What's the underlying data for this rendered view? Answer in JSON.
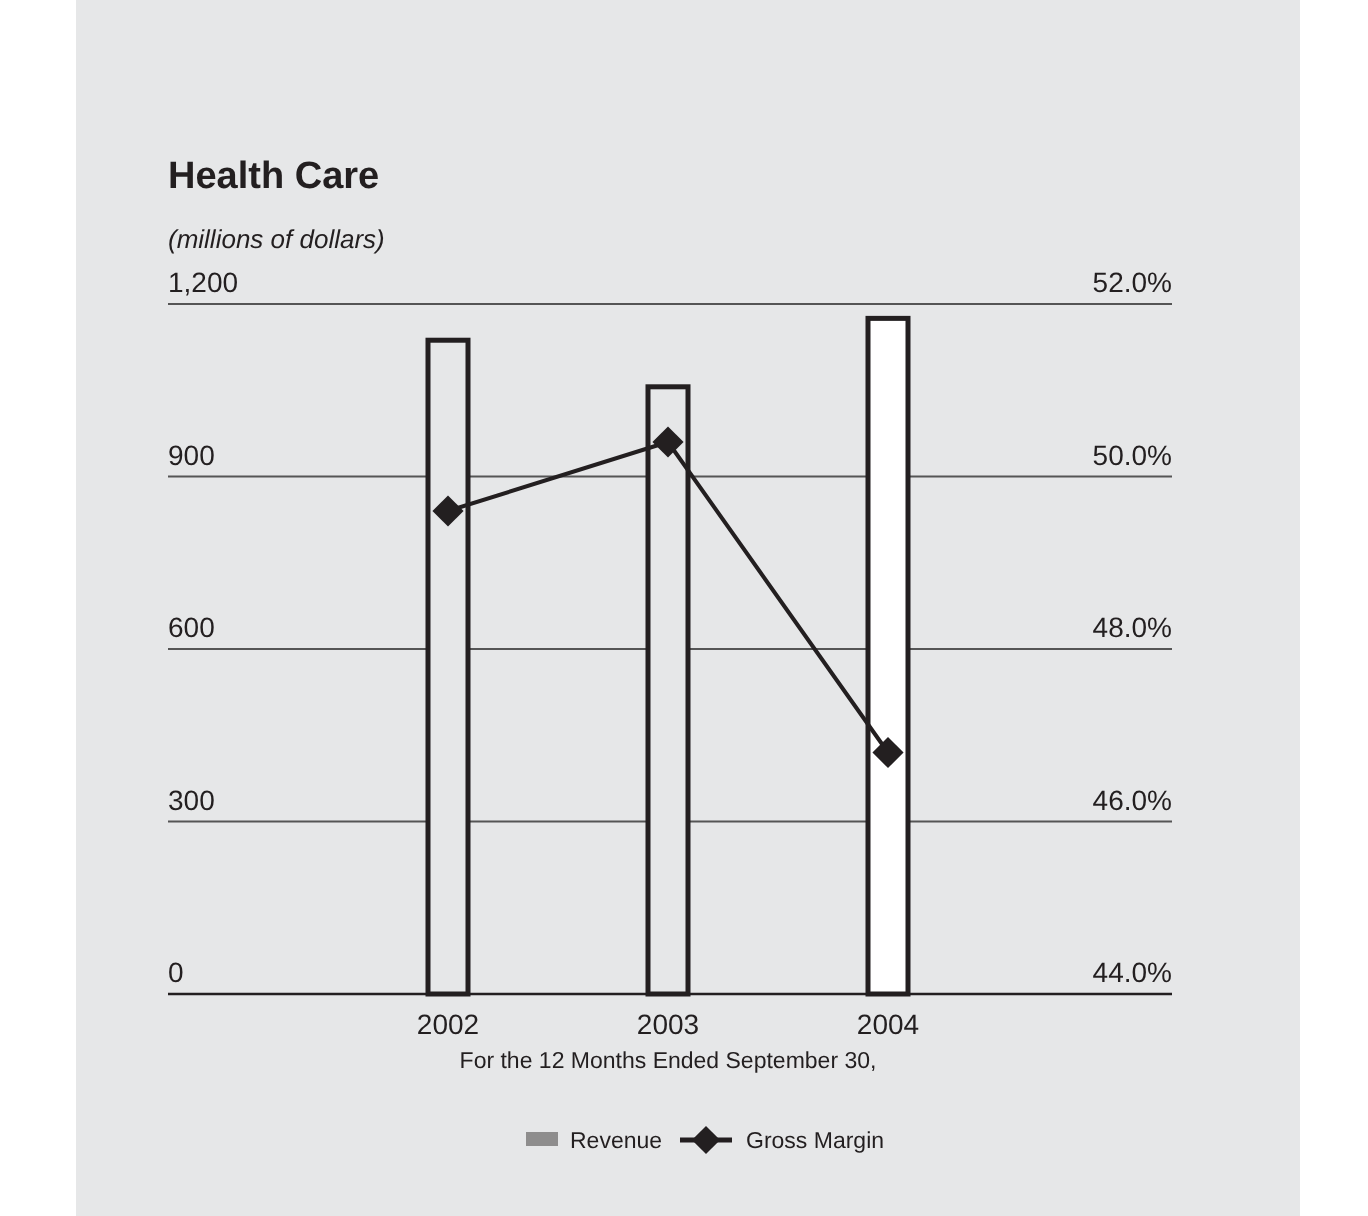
{
  "chart_data": {
    "type": "bar",
    "title": "Health Care",
    "subtitle": "(millions of dollars)",
    "xlabel": "For the 12 Months Ended September 30,",
    "categories": [
      "2002",
      "2003",
      "2004"
    ],
    "series": [
      {
        "name": "Revenue",
        "color": "#231f20",
        "colors": [
          "#e6e7e8",
          "#e6e7e8",
          "#ffffff"
        ],
        "values": [
          1137,
          1056,
          1175
        ]
      },
      {
        "name": "Gross Margin",
        "type": "line",
        "axis": "y2",
        "color": "#231f20",
        "values": [
          49.6,
          50.4,
          46.8
        ]
      }
    ],
    "ylim": [
      0,
      1200
    ],
    "yticks": [
      0,
      {
        "value": 300,
        "label": "300"
      },
      {
        "value": 600,
        "label": "600"
      },
      {
        "value": 900,
        "label": "900"
      },
      {
        "value": 1200,
        "label": "1,200"
      }
    ],
    "y2lim": [
      44,
      52
    ],
    "y2ticks": [
      {
        "value": 44,
        "label": "44.0%"
      },
      {
        "value": 46,
        "label": "46.0%"
      },
      {
        "value": 48,
        "label": "48.0%"
      },
      {
        "value": 50,
        "label": "50.0%"
      },
      {
        "value": 52,
        "label": "52.0%"
      }
    ],
    "grid": "y",
    "legend": "bottom",
    "marker": "diamond",
    "line_style": "solid"
  }
}
